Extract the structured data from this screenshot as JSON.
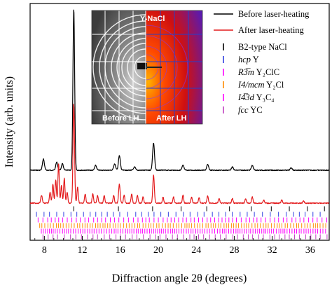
{
  "chart_data": {
    "type": "line",
    "xlabel": "Diffraction angle 2θ (degrees)",
    "ylabel": "Intensity (arb. units)",
    "xlim": [
      6.5,
      38
    ],
    "xticks": [
      8,
      12,
      16,
      20,
      24,
      28,
      32,
      36
    ],
    "yticks": "none",
    "series": [
      {
        "name": "Before laser-heating",
        "color": "#000000",
        "baseline": 0.0,
        "peaks": [
          {
            "x": 7.9,
            "h": 0.07,
            "w": 0.1
          },
          {
            "x": 9.3,
            "h": 0.05,
            "w": 0.1
          },
          {
            "x": 9.9,
            "h": 0.04,
            "w": 0.1
          },
          {
            "x": 11.1,
            "h": 1.0,
            "w": 0.09
          },
          {
            "x": 13.4,
            "h": 0.03,
            "w": 0.1
          },
          {
            "x": 15.4,
            "h": 0.04,
            "w": 0.1
          },
          {
            "x": 15.9,
            "h": 0.09,
            "w": 0.1
          },
          {
            "x": 17.5,
            "h": 0.02,
            "w": 0.1
          },
          {
            "x": 19.5,
            "h": 0.17,
            "w": 0.1
          },
          {
            "x": 22.6,
            "h": 0.03,
            "w": 0.1
          },
          {
            "x": 25.2,
            "h": 0.035,
            "w": 0.1
          },
          {
            "x": 27.8,
            "h": 0.02,
            "w": 0.1
          },
          {
            "x": 29.9,
            "h": 0.03,
            "w": 0.1
          },
          {
            "x": 34.0,
            "h": 0.015,
            "w": 0.1
          }
        ]
      },
      {
        "name": "After laser-heating",
        "color": "#e31a1c",
        "baseline": 0.0,
        "peaks": [
          {
            "x": 7.7,
            "h": 0.05,
            "w": 0.08
          },
          {
            "x": 8.6,
            "h": 0.07,
            "w": 0.07
          },
          {
            "x": 8.9,
            "h": 0.12,
            "w": 0.07
          },
          {
            "x": 9.2,
            "h": 0.15,
            "w": 0.07
          },
          {
            "x": 9.5,
            "h": 0.25,
            "w": 0.07
          },
          {
            "x": 9.8,
            "h": 0.11,
            "w": 0.07
          },
          {
            "x": 10.1,
            "h": 0.16,
            "w": 0.07
          },
          {
            "x": 10.4,
            "h": 0.07,
            "w": 0.07
          },
          {
            "x": 11.1,
            "h": 0.63,
            "w": 0.08
          },
          {
            "x": 11.5,
            "h": 0.1,
            "w": 0.07
          },
          {
            "x": 12.3,
            "h": 0.06,
            "w": 0.07
          },
          {
            "x": 13.1,
            "h": 0.06,
            "w": 0.07
          },
          {
            "x": 13.6,
            "h": 0.05,
            "w": 0.07
          },
          {
            "x": 14.3,
            "h": 0.05,
            "w": 0.07
          },
          {
            "x": 15.3,
            "h": 0.05,
            "w": 0.07
          },
          {
            "x": 15.9,
            "h": 0.12,
            "w": 0.08
          },
          {
            "x": 16.4,
            "h": 0.05,
            "w": 0.07
          },
          {
            "x": 17.2,
            "h": 0.06,
            "w": 0.07
          },
          {
            "x": 17.8,
            "h": 0.05,
            "w": 0.07
          },
          {
            "x": 18.4,
            "h": 0.04,
            "w": 0.07
          },
          {
            "x": 19.5,
            "h": 0.18,
            "w": 0.08
          },
          {
            "x": 20.5,
            "h": 0.04,
            "w": 0.07
          },
          {
            "x": 21.6,
            "h": 0.04,
            "w": 0.07
          },
          {
            "x": 22.6,
            "h": 0.05,
            "w": 0.07
          },
          {
            "x": 23.5,
            "h": 0.04,
            "w": 0.07
          },
          {
            "x": 24.3,
            "h": 0.035,
            "w": 0.07
          },
          {
            "x": 25.2,
            "h": 0.045,
            "w": 0.07
          },
          {
            "x": 26.4,
            "h": 0.03,
            "w": 0.07
          },
          {
            "x": 27.8,
            "h": 0.03,
            "w": 0.07
          },
          {
            "x": 29.2,
            "h": 0.03,
            "w": 0.07
          },
          {
            "x": 29.9,
            "h": 0.04,
            "w": 0.07
          },
          {
            "x": 31.1,
            "h": 0.02,
            "w": 0.07
          },
          {
            "x": 33.0,
            "h": 0.02,
            "w": 0.07
          },
          {
            "x": 35.3,
            "h": 0.015,
            "w": 0.07
          }
        ]
      }
    ],
    "reference_ticks": [
      {
        "name": "B2-type NaCl",
        "color": "#000000",
        "positions": [
          11.1,
          15.8,
          19.4,
          22.4,
          25.1,
          27.5,
          29.8,
          31.9,
          33.8,
          35.7,
          37.5
        ]
      },
      {
        "name": "hcp Y",
        "color": "#2f3fe0",
        "positions": "dense"
      },
      {
        "name": "R3̅m Y2ClC",
        "color": "#ff00ff",
        "positions": "dense"
      },
      {
        "name": "I4/mcm Y2Cl",
        "color": "#ff8c00",
        "positions": "dense"
      },
      {
        "name": "I4̅3d Y3C4",
        "color": "#ff00ff",
        "positions": "dense"
      },
      {
        "name": "fcc YC",
        "color": "#c040c0",
        "positions": "dense"
      }
    ],
    "legend": {
      "placement": "top-right",
      "lines": [
        {
          "label": "Before laser-heating",
          "color": "#000000"
        },
        {
          "label": "After laser-heating",
          "color": "#e31a1c"
        }
      ],
      "ticks": [
        {
          "label_main": "B2-type NaCl",
          "label_italic": "",
          "color": "#000000"
        },
        {
          "label_main": " Y",
          "label_italic": "hcp",
          "color": "#2f3fe0"
        },
        {
          "label_main": " Y₂ClC",
          "label_italic": "R3̅m",
          "color": "#ff00ff"
        },
        {
          "label_main": " Y₂Cl",
          "label_italic": "I4/mcm",
          "color": "#ff8c00"
        },
        {
          "label_main": " Y₃C₄",
          "label_italic": "I4̅3d",
          "color": "#ff00ff"
        },
        {
          "label_main": " YC",
          "label_italic": "fcc",
          "color": "#c040c0"
        }
      ]
    },
    "inset": {
      "title": "Y-NaCl",
      "left_label": "Before LH",
      "right_label": "After LH"
    }
  }
}
